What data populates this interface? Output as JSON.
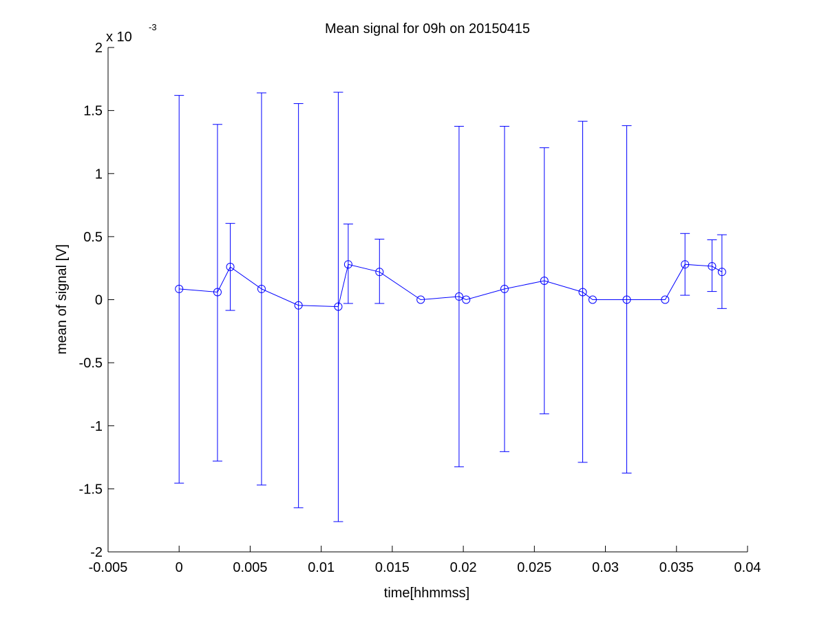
{
  "chart_data": {
    "type": "line",
    "title": "Mean signal for 09h on 20150415",
    "xlabel": "time[hhmmss]",
    "ylabel": "mean of signal [V]",
    "xlim": [
      -0.005,
      0.04
    ],
    "ylim": [
      -2,
      2
    ],
    "y_scale_factor_label": {
      "base": "x 10",
      "exponent": "-3"
    },
    "x_ticks": [
      -0.005,
      0,
      0.005,
      0.01,
      0.015,
      0.02,
      0.025,
      0.03,
      0.035,
      0.04
    ],
    "x_tick_labels": [
      "-0.005",
      "0",
      "0.005",
      "0.01",
      "0.015",
      "0.02",
      "0.025",
      "0.03",
      "0.035",
      "0.04"
    ],
    "y_ticks": [
      -2,
      -1.5,
      -1,
      -0.5,
      0,
      0.5,
      1,
      1.5,
      2
    ],
    "y_tick_labels": [
      "-2",
      "-1.5",
      "-1",
      "-0.5",
      "0",
      "0.5",
      "1",
      "1.5",
      "2"
    ],
    "grid": false,
    "legend": "none",
    "color": "#0000ff",
    "marker": "circle",
    "series": [
      {
        "x": [
          0,
          0.0027,
          0.0036,
          0.0058,
          0.0084,
          0.0112,
          0.0119,
          0.0141,
          0.017,
          0.0197,
          0.0202,
          0.0229,
          0.0257,
          0.0284,
          0.0291,
          0.0315,
          0.0342,
          0.0356,
          0.0375,
          0.0382
        ],
        "y": [
          0.085,
          0.06,
          0.26,
          0.085,
          -0.045,
          -0.055,
          0.28,
          0.22,
          0,
          0.025,
          0,
          0.085,
          0.15,
          0.06,
          0,
          0,
          0,
          0.28,
          0.265,
          0.22
        ],
        "lower": [
          -1.455,
          -1.28,
          -0.085,
          -1.47,
          -1.65,
          -1.76,
          -0.03,
          -0.03,
          null,
          -1.325,
          null,
          -1.205,
          -0.905,
          -1.29,
          null,
          -1.375,
          null,
          0.035,
          0.065,
          -0.07
        ],
        "upper": [
          1.62,
          1.39,
          0.605,
          1.64,
          1.555,
          1.645,
          0.6,
          0.48,
          null,
          1.375,
          null,
          1.375,
          1.205,
          1.415,
          null,
          1.38,
          null,
          0.525,
          0.475,
          0.515
        ]
      }
    ]
  }
}
